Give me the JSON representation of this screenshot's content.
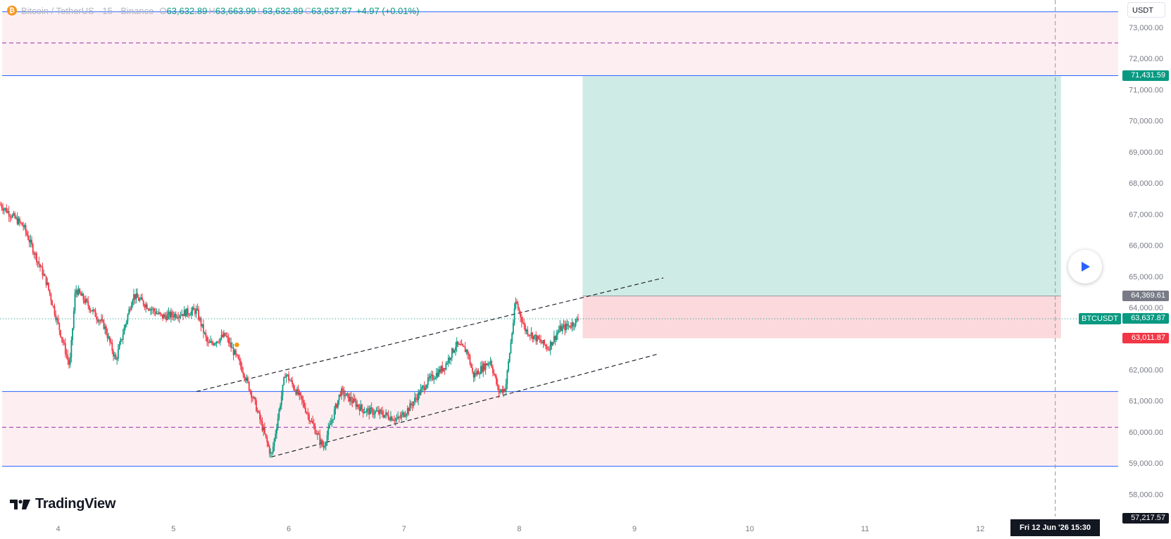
{
  "header": {
    "symbol": "Bitcoin / TetherUS · 15 · Binance",
    "coin_letter": "₿",
    "open_label": "O",
    "open": "63,632.89",
    "high_label": "H",
    "high": "63,663.99",
    "low_label": "L",
    "low": "63,632.89",
    "close_label": "C",
    "close": "63,637.87",
    "change": "+4.97 (+0.01%)"
  },
  "currency": "USDT",
  "price_axis": {
    "ticks": [
      "73,000.00",
      "72,000.00",
      "71,000.00",
      "70,000.00",
      "69,000.00",
      "68,000.00",
      "67,000.00",
      "66,000.00",
      "65,000.00",
      "64,000.00",
      "62,000.00",
      "61,000.00",
      "60,000.00",
      "59,000.00",
      "58,000.00"
    ]
  },
  "time_axis": {
    "ticks": [
      "4",
      "5",
      "6",
      "7",
      "8",
      "9",
      "10",
      "11",
      "12"
    ]
  },
  "price_labels": {
    "target": "71,431.59",
    "entry": "64,369.61",
    "last": "63,637.87",
    "stop": "63,011.87",
    "crosshair": "57,217.57"
  },
  "symbol_tag": "BTCUSDT",
  "crosshair_date": "Fri 12 Jun '26   15:30",
  "logo_text": "TradingView",
  "colors": {
    "up": "#089981",
    "down": "#f23645",
    "zone_line": "#2962ff",
    "zone_fill": "#fdeff1",
    "profit": "#cfebe6",
    "loss": "#fbd9dd",
    "entry_label": "#787b86",
    "stop_label": "#f23645",
    "target_label": "#089981"
  },
  "chart_data": {
    "type": "candlestick",
    "series_name": "BTCUSDT",
    "interval": "15",
    "x_ticks": [
      "4",
      "5",
      "6",
      "7",
      "8",
      "9",
      "10",
      "11",
      "12"
    ],
    "y_range": [
      57000,
      73500
    ],
    "price_path": [
      [
        3.5,
        67300
      ],
      [
        3.7,
        66600
      ],
      [
        3.9,
        64800
      ],
      [
        4.1,
        62100
      ],
      [
        4.15,
        64600
      ],
      [
        4.4,
        63400
      ],
      [
        4.5,
        62300
      ],
      [
        4.65,
        64400
      ],
      [
        4.9,
        63700
      ],
      [
        5.2,
        63900
      ],
      [
        5.3,
        62800
      ],
      [
        5.45,
        63100
      ],
      [
        5.6,
        62000
      ],
      [
        5.7,
        61000
      ],
      [
        5.85,
        59200
      ],
      [
        5.97,
        61900
      ],
      [
        6.1,
        61100
      ],
      [
        6.3,
        59500
      ],
      [
        6.45,
        61300
      ],
      [
        6.65,
        60700
      ],
      [
        6.8,
        60600
      ],
      [
        6.95,
        60400
      ],
      [
        7.05,
        60800
      ],
      [
        7.2,
        61600
      ],
      [
        7.35,
        62100
      ],
      [
        7.45,
        62800
      ],
      [
        7.55,
        62600
      ],
      [
        7.6,
        61800
      ],
      [
        7.75,
        62300
      ],
      [
        7.82,
        61300
      ],
      [
        7.88,
        61400
      ],
      [
        7.95,
        63600
      ],
      [
        7.97,
        64200
      ],
      [
        8.05,
        63300
      ],
      [
        8.15,
        63000
      ],
      [
        8.25,
        62700
      ],
      [
        8.35,
        63300
      ],
      [
        8.45,
        63450
      ],
      [
        8.52,
        63637.87
      ]
    ],
    "horizontal_zones": [
      {
        "top": 73500,
        "mid": 72500,
        "bottom": 71450
      },
      {
        "top": 61300,
        "mid": 60150,
        "bottom": 58900
      }
    ],
    "channel": {
      "upper": [
        [
          5.2,
          61300
        ],
        [
          9.25,
          64950
        ]
      ],
      "lower": [
        [
          5.85,
          59200
        ],
        [
          9.2,
          62500
        ]
      ]
    },
    "long_position": {
      "start": 8.55,
      "end": 12.7,
      "entry": 64369.61,
      "target": 71431.59,
      "stop": 63011.87
    },
    "last_price": 63637.87,
    "crosshair": {
      "x": 12.65,
      "price": 57217.57
    }
  }
}
